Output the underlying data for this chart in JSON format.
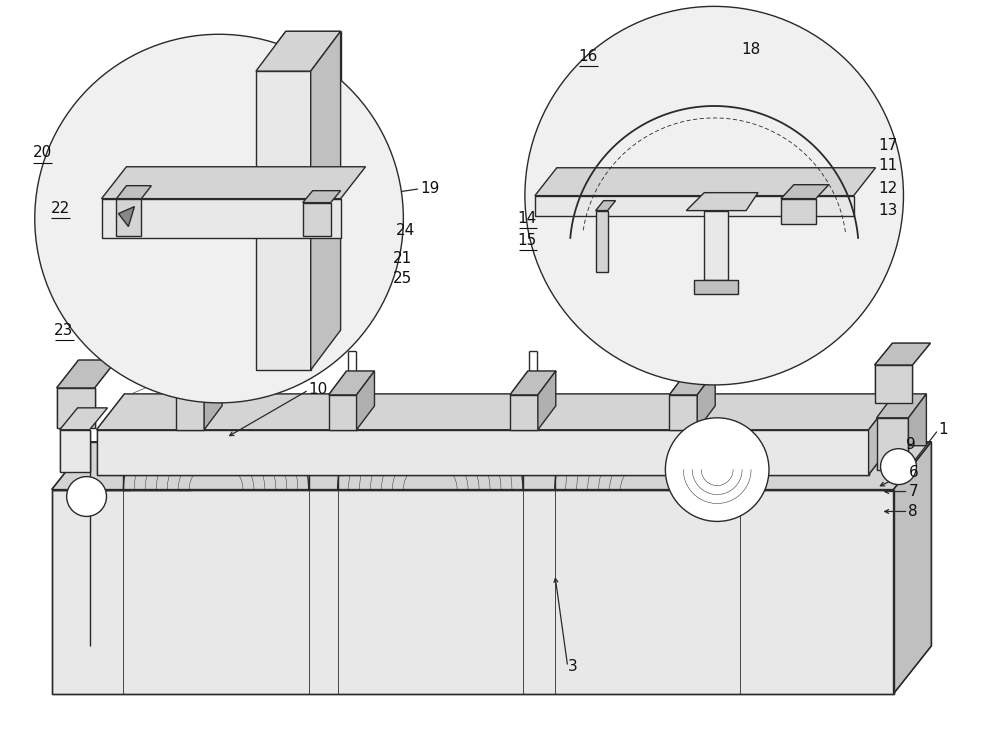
{
  "bg_color": "#ffffff",
  "lc": "#2a2a2a",
  "lw": 1.0,
  "tlw": 0.6,
  "fig_w": 10.0,
  "fig_h": 7.35,
  "dpi": 100,
  "shade1": "#e8e8e8",
  "shade2": "#d4d4d4",
  "shade3": "#c0c0c0",
  "shade4": "#b0b0b0",
  "circle_bg": "#f0f0f0"
}
